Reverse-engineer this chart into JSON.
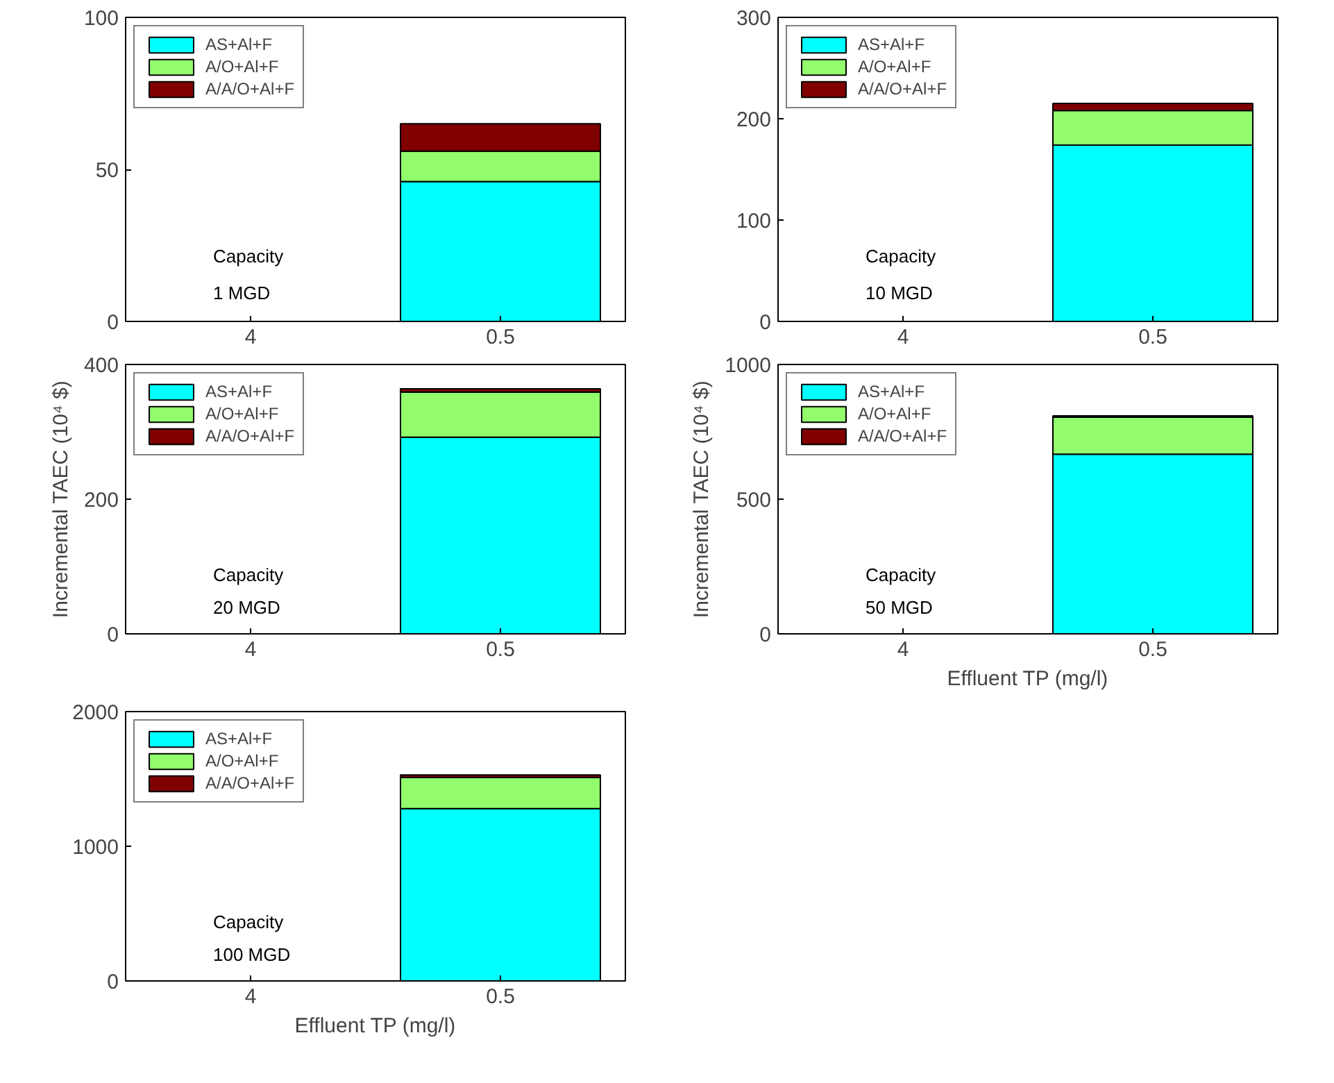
{
  "chart_data": [
    {
      "type": "bar",
      "stacked": true,
      "categories": [
        "4",
        "0.5"
      ],
      "ylim": [
        0,
        100
      ],
      "yticks": [
        0,
        50,
        100
      ],
      "grid": false,
      "legend": "top left",
      "annotations": [
        "Capacity",
        "1 MGD"
      ],
      "series": [
        {
          "name": "AS+Al+F",
          "color": "#00ffff",
          "values": [
            null,
            46
          ]
        },
        {
          "name": "A/O+Al+F",
          "color": "#92fc6c",
          "values": [
            null,
            10
          ]
        },
        {
          "name": "A/A/O+Al+F",
          "color": "#800000",
          "values": [
            null,
            9
          ]
        }
      ]
    },
    {
      "type": "bar",
      "stacked": true,
      "categories": [
        "4",
        "0.5"
      ],
      "ylim": [
        0,
        300
      ],
      "yticks": [
        0,
        100,
        200,
        300
      ],
      "grid": false,
      "legend": "top left",
      "annotations": [
        "Capacity",
        "10 MGD"
      ],
      "series": [
        {
          "name": "AS+Al+F",
          "color": "#00ffff",
          "values": [
            null,
            174
          ]
        },
        {
          "name": "A/O+Al+F",
          "color": "#92fc6c",
          "values": [
            null,
            34
          ]
        },
        {
          "name": "A/A/O+Al+F",
          "color": "#800000",
          "values": [
            null,
            7
          ]
        }
      ]
    },
    {
      "type": "bar",
      "stacked": true,
      "categories": [
        "4",
        "0.5"
      ],
      "ylim": [
        0,
        400
      ],
      "yticks": [
        0,
        200,
        400
      ],
      "grid": false,
      "legend": "top left",
      "ylabel": "Incremental TAEC (10⁴ $)",
      "annotations": [
        "Capacity",
        "20 MGD"
      ],
      "series": [
        {
          "name": "AS+Al+F",
          "color": "#00ffff",
          "values": [
            null,
            292
          ]
        },
        {
          "name": "A/O+Al+F",
          "color": "#92fc6c",
          "values": [
            null,
            67
          ]
        },
        {
          "name": "A/A/O+Al+F",
          "color": "#800000",
          "values": [
            null,
            5
          ]
        }
      ]
    },
    {
      "type": "bar",
      "stacked": true,
      "categories": [
        "4",
        "0.5"
      ],
      "ylim": [
        0,
        1000
      ],
      "yticks": [
        0,
        500,
        1000
      ],
      "grid": false,
      "legend": "top left",
      "ylabel": "Incremental TAEC (10⁴ $)",
      "xlabel": "Effluent TP (mg/l)",
      "annotations": [
        "Capacity",
        "50 MGD"
      ],
      "series": [
        {
          "name": "AS+Al+F",
          "color": "#00ffff",
          "values": [
            null,
            667
          ]
        },
        {
          "name": "A/O+Al+F",
          "color": "#92fc6c",
          "values": [
            null,
            137
          ]
        },
        {
          "name": "A/A/O+Al+F",
          "color": "#800000",
          "values": [
            null,
            5
          ]
        }
      ]
    },
    {
      "type": "bar",
      "stacked": true,
      "categories": [
        "4",
        "0.5"
      ],
      "ylim": [
        0,
        2000
      ],
      "yticks": [
        0,
        1000,
        2000
      ],
      "grid": false,
      "legend": "top left",
      "xlabel": "Effluent TP (mg/l)",
      "annotations": [
        "Capacity",
        "100 MGD"
      ],
      "series": [
        {
          "name": "AS+Al+F",
          "color": "#00ffff",
          "values": [
            null,
            1280
          ]
        },
        {
          "name": "A/O+Al+F",
          "color": "#92fc6c",
          "values": [
            null,
            230
          ]
        },
        {
          "name": "A/A/O+Al+F",
          "color": "#800000",
          "values": [
            null,
            20
          ]
        }
      ]
    }
  ]
}
